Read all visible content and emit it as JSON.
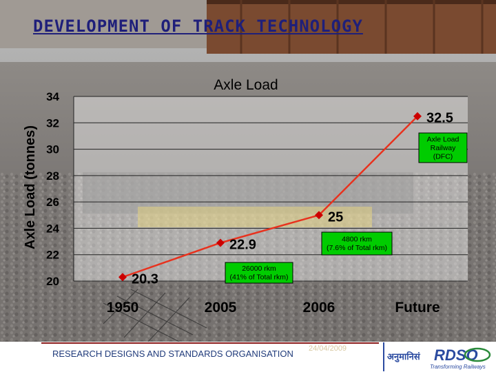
{
  "slide": {
    "title": "DEVELOPMENT OF TRACK TECHNOLOGY",
    "footer_org": "RESEARCH DESIGNS AND STANDARDS ORGANISATION",
    "footer_date": "24/04/2009"
  },
  "logo": {
    "text_main": "RDSO",
    "text_hindi": "अनुमानिसं",
    "tagline": "Transforming Railways"
  },
  "colors": {
    "series_line": "#e8321e",
    "marker": "#cc0000",
    "title": "#1f1f7a",
    "annotation_bg": "#00cc00",
    "accent_blue": "#2a4aa0"
  },
  "chart_data": {
    "type": "line",
    "title": "Axle Load",
    "xlabel": "",
    "ylabel": "Axle Load (tonnes)",
    "categories": [
      "1950",
      "2005",
      "2006",
      "Future"
    ],
    "values": [
      20.3,
      22.9,
      25,
      32.5
    ],
    "data_labels": [
      "20.3",
      "22.9",
      "25",
      "32.5"
    ],
    "ylim": [
      20,
      34
    ],
    "yticks": [
      "20",
      "22",
      "24",
      "26",
      "28",
      "30",
      "32",
      "34"
    ],
    "grid": "horizontal",
    "annotations": [
      {
        "lines": [
          "26000 rkm",
          "(41% of Total rkm)"
        ],
        "category": "2005"
      },
      {
        "lines": [
          "4800 rkm",
          "(7.6% of Total rkm)"
        ],
        "category": "2006"
      },
      {
        "lines": [
          "Axle Load",
          "Railway",
          "(DFC)"
        ],
        "category": "Future"
      }
    ]
  }
}
